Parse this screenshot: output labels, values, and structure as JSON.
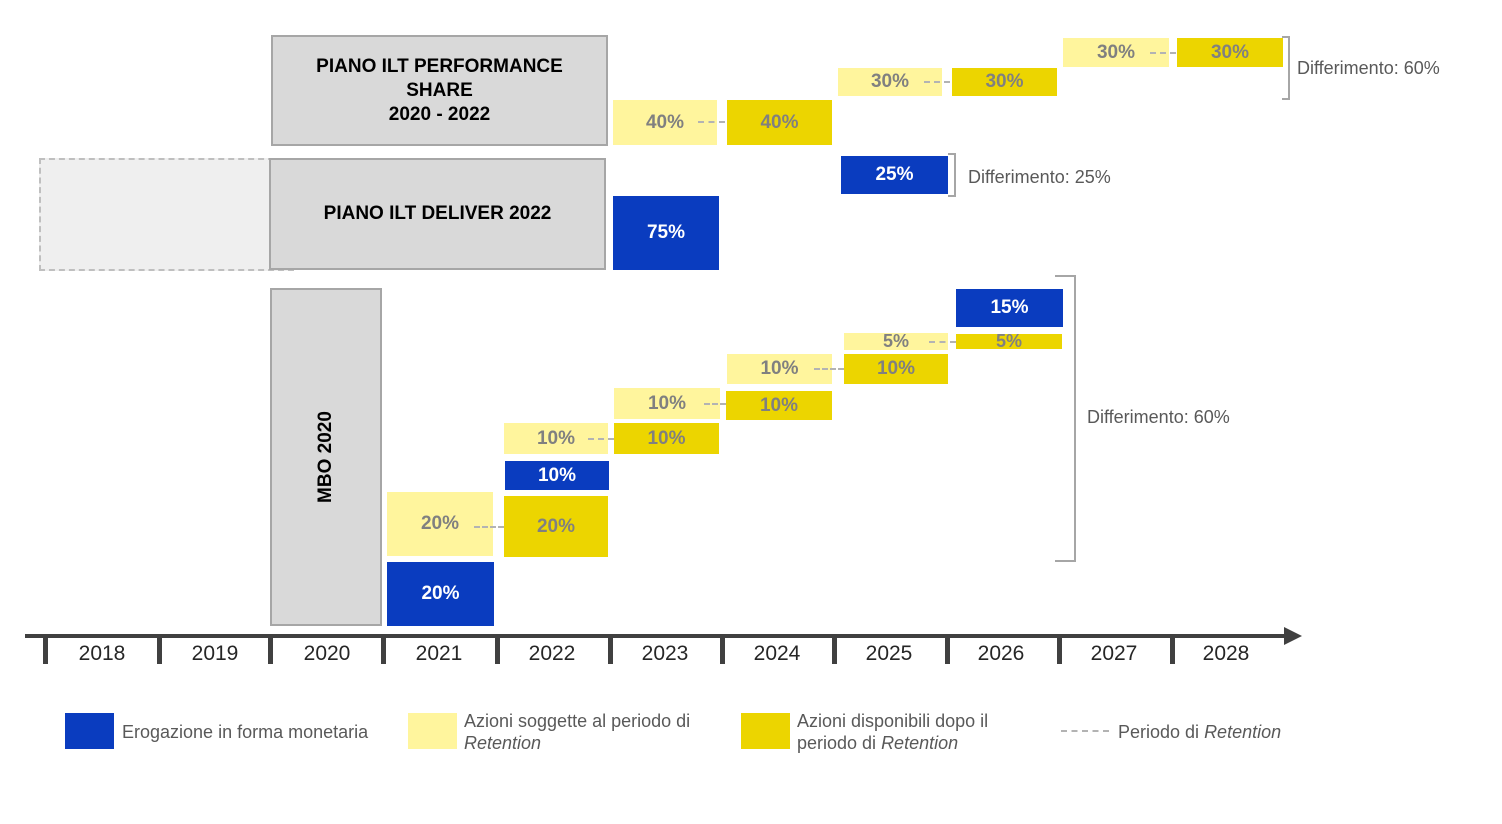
{
  "colors": {
    "monetary": "#0a3cbf",
    "retention_shares": "#fff59d",
    "available_shares": "#ecd500",
    "plan_box": "#d9d9d9",
    "axis": "#404040"
  },
  "plans": {
    "performance_share": {
      "line1": "PIANO ILT PERFORMANCE",
      "line2": "SHARE",
      "line3": "2020 - 2022"
    },
    "deliver": {
      "label": "PIANO ILT DELIVER 2022"
    },
    "mbo": {
      "label": "MBO 2020"
    }
  },
  "timeline": {
    "years": [
      "2018",
      "2019",
      "2020",
      "2021",
      "2022",
      "2023",
      "2024",
      "2025",
      "2026",
      "2027",
      "2028"
    ]
  },
  "blocks": {
    "ps_2023_ret": "40%",
    "ps_2024_av": "40%",
    "ps_2025_ret": "30%",
    "ps_2026_av": "30%",
    "ps_2027_ret": "30%",
    "ps_2028_av": "30%",
    "dl_2023_mon": "75%",
    "dl_2025_mon": "25%",
    "mbo_2021_mon": "20%",
    "mbo_2021_ret": "20%",
    "mbo_2022_av": "20%",
    "mbo_2022_mon": "10%",
    "mbo_2022_ret": "10%",
    "mbo_2023_av": "10%",
    "mbo_2023_ret": "10%",
    "mbo_2024_av": "10%",
    "mbo_2024_ret": "10%",
    "mbo_2025_av": "10%",
    "mbo_2025_ret": "5%",
    "mbo_2026_av": "5%",
    "mbo_2026_mon": "15%"
  },
  "notes": {
    "ps_deferral": "Differimento: 60%",
    "dl_deferral": "Differimento: 25%",
    "mbo_deferral": "Differimento: 60%"
  },
  "legend": {
    "monetary": "Erogazione in forma monetaria",
    "retention_line1": "Azioni soggette al periodo di",
    "retention_line2": "Retention",
    "available_line1": "Azioni disponibili dopo il",
    "available_line2_prefix": "periodo di ",
    "available_line2_italic": "Retention",
    "period_prefix": "Periodo di ",
    "period_italic": "Retention"
  }
}
